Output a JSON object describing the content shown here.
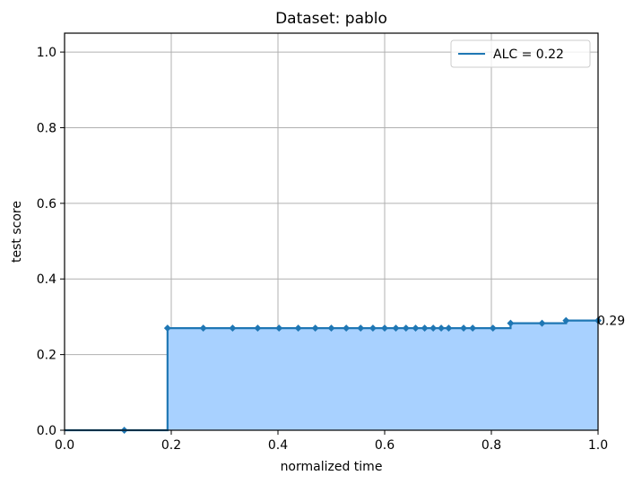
{
  "chart_data": {
    "type": "area",
    "title": "Dataset: pablo",
    "xlabel": "normalized time",
    "ylabel": "test score",
    "xlim": [
      0.0,
      1.0
    ],
    "ylim": [
      0.0,
      1.05
    ],
    "xticks": [
      "0.0",
      "0.2",
      "0.4",
      "0.6",
      "0.8",
      "1.0"
    ],
    "yticks": [
      "0.0",
      "0.2",
      "0.4",
      "0.6",
      "0.8",
      "1.0"
    ],
    "grid": true,
    "legend_position": "top-right",
    "step": "post",
    "series": [
      {
        "name": "ALC = 0.22",
        "color": "#1f77b4",
        "fill_color": "#a8d1ff",
        "marker": "diamond",
        "x": [
          0.112,
          0.193,
          0.26,
          0.315,
          0.362,
          0.402,
          0.438,
          0.47,
          0.5,
          0.528,
          0.555,
          0.578,
          0.6,
          0.621,
          0.64,
          0.658,
          0.675,
          0.691,
          0.706,
          0.72,
          0.748,
          0.765,
          0.803,
          0.836,
          0.895,
          0.94,
          1.0
        ],
        "y": [
          0.0,
          0.27,
          0.27,
          0.27,
          0.27,
          0.27,
          0.27,
          0.27,
          0.27,
          0.27,
          0.27,
          0.27,
          0.27,
          0.27,
          0.27,
          0.27,
          0.27,
          0.27,
          0.27,
          0.27,
          0.27,
          0.27,
          0.27,
          0.283,
          0.283,
          0.29,
          0.29
        ]
      }
    ],
    "annotations": [
      {
        "text": "0.29",
        "x": 1.0,
        "y": 0.29
      }
    ]
  }
}
